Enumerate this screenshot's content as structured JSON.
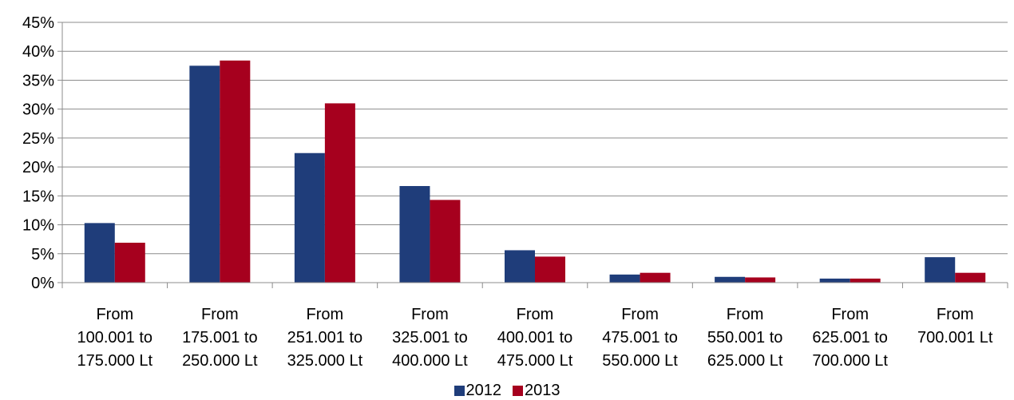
{
  "chart_data": {
    "type": "bar",
    "title": "",
    "xlabel": "",
    "ylabel": "",
    "ylim": [
      0,
      45
    ],
    "yticks": [
      "0%",
      "5%",
      "10%",
      "15%",
      "20%",
      "25%",
      "30%",
      "35%",
      "40%",
      "45%"
    ],
    "ytick_values": [
      0,
      5,
      10,
      15,
      20,
      25,
      30,
      35,
      40,
      45
    ],
    "grid": true,
    "legend_position": "bottom",
    "categories": [
      [
        "From",
        "100.001 to",
        "175.000 Lt"
      ],
      [
        "From",
        "175.001 to",
        "250.000 Lt"
      ],
      [
        "From",
        "251.001 to",
        "325.000 Lt"
      ],
      [
        "From",
        "325.001 to",
        "400.000 Lt"
      ],
      [
        "From",
        "400.001 to",
        "475.000 Lt"
      ],
      [
        "From",
        "475.001 to",
        "550.000 Lt"
      ],
      [
        "From",
        "550.001 to",
        "625.000 Lt"
      ],
      [
        "From",
        "625.001 to",
        "700.000 Lt"
      ],
      [
        "From",
        "700.001 Lt"
      ]
    ],
    "series": [
      {
        "name": "2012",
        "color": "#1f3d7a",
        "values": [
          10.3,
          37.5,
          22.4,
          16.7,
          5.6,
          1.4,
          1.0,
          0.7,
          4.4
        ]
      },
      {
        "name": "2013",
        "color": "#a6001e",
        "values": [
          6.9,
          38.4,
          31.0,
          14.3,
          4.5,
          1.7,
          0.9,
          0.7,
          1.7
        ]
      }
    ]
  }
}
